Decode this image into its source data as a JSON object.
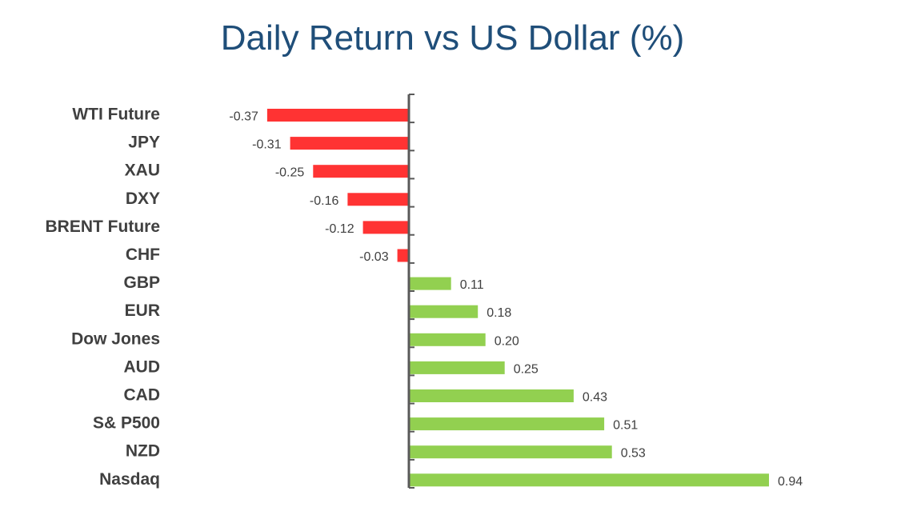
{
  "chart_data": {
    "type": "bar",
    "orientation": "horizontal",
    "title": "Daily Return vs US Dollar (%)",
    "categories": [
      "WTI Future",
      "JPY",
      "XAU",
      "DXY",
      "BRENT Future",
      "CHF",
      "GBP",
      "EUR",
      "Dow Jones",
      "AUD",
      "CAD",
      "S& P500",
      "NZD",
      "Nasdaq"
    ],
    "values": [
      -0.37,
      -0.31,
      -0.25,
      -0.16,
      -0.12,
      -0.03,
      0.11,
      0.18,
      0.2,
      0.25,
      0.43,
      0.51,
      0.53,
      0.94
    ],
    "value_labels": [
      "-0.37",
      "-0.31",
      "-0.25",
      "-0.16",
      "-0.12",
      "-0.03",
      "0.11",
      "0.18",
      "0.20",
      "0.25",
      "0.43",
      "0.51",
      "0.53",
      "0.94"
    ],
    "colors": {
      "negative": "#ff3333",
      "positive": "#92d050",
      "axis": "#595959",
      "title": "#1f4e79",
      "label": "#404040"
    },
    "xlim": [
      -0.37,
      0.94
    ],
    "grid": false,
    "legend": "none"
  }
}
